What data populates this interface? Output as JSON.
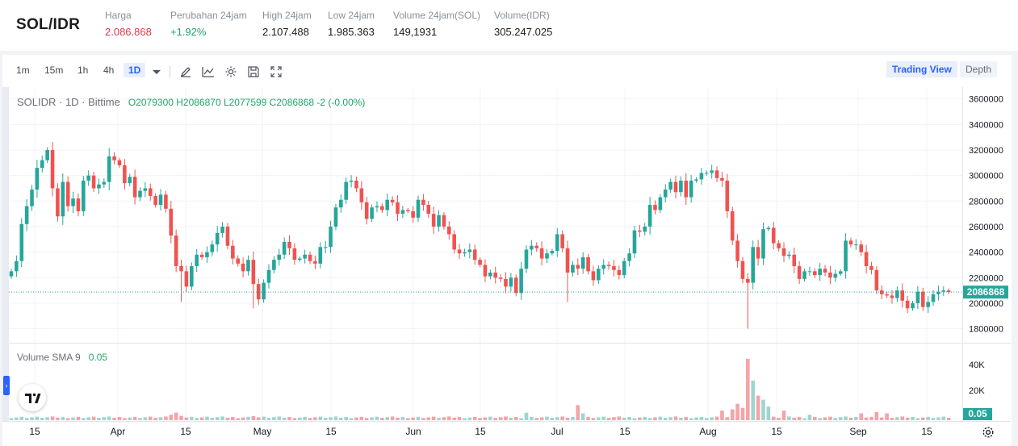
{
  "ticker": {
    "pair": "SOL/IDR",
    "stats": [
      {
        "label": "Harga",
        "value": "2.086.868",
        "tone": "red"
      },
      {
        "label": "Perubahan 24jam",
        "value": "+1.92%",
        "tone": "green"
      },
      {
        "label": "High 24jam",
        "value": "2.107.488",
        "tone": "normal"
      },
      {
        "label": "Low 24jam",
        "value": "1.985.363",
        "tone": "normal"
      },
      {
        "label": "Volume 24jam(SOL)",
        "value": "149,1931",
        "tone": "normal"
      },
      {
        "label": "Volume(IDR)",
        "value": "305.247.025",
        "tone": "normal"
      }
    ]
  },
  "toolbar": {
    "intervals": [
      "1m",
      "15m",
      "1h",
      "4h",
      "1D"
    ],
    "selected_interval": "1D",
    "icons": [
      "chevron-down-icon",
      "draw-icon",
      "indicator-icon",
      "settings-icon",
      "save-icon",
      "fullscreen-icon"
    ],
    "view_active": "Trading View",
    "view_other": "Depth"
  },
  "legend": {
    "symbol": "SOLIDR · 1D · Bittime",
    "ohlc": "O2079300  H2086870  L2077599  C2086868  -2 (-0.00%)",
    "volume_label": "Volume SMA 9",
    "volume_value": "0.05"
  },
  "colors": {
    "up": "#26a69a",
    "down": "#ef5350",
    "up_vol": "#9ed6cf",
    "down_vol": "#f5a3a7",
    "accent": "#2962ff"
  },
  "chart_data": {
    "type": "candlestick",
    "x_tick_labels": [
      "15",
      "Apr",
      "15",
      "May",
      "15",
      "Jun",
      "15",
      "Jul",
      "15",
      "Aug",
      "15",
      "Sep",
      "15"
    ],
    "price_axis_ticks": [
      1800000,
      2000000,
      2200000,
      2400000,
      2600000,
      2800000,
      3000000,
      3200000,
      3400000,
      3600000
    ],
    "price_range": [
      1690000,
      3680000
    ],
    "last_price": 2086868,
    "last_price_label": "2086868",
    "volume_axis_ticks": [
      "20K",
      "40K"
    ],
    "volume_last_label": "0.05",
    "closes": [
      2250000,
      2330000,
      2620000,
      2760000,
      2890000,
      3060000,
      3120000,
      3200000,
      2900000,
      2680000,
      2950000,
      2760000,
      2820000,
      2720000,
      2960000,
      3000000,
      2900000,
      2930000,
      2950000,
      3150000,
      3120000,
      3080000,
      2940000,
      2990000,
      2830000,
      2880000,
      2900000,
      2840000,
      2770000,
      2850000,
      2740000,
      2530000,
      2290000,
      2250000,
      2130000,
      2290000,
      2380000,
      2360000,
      2400000,
      2460000,
      2550000,
      2600000,
      2450000,
      2350000,
      2310000,
      2250000,
      2340000,
      2150000,
      2030000,
      2160000,
      2260000,
      2340000,
      2380000,
      2480000,
      2430000,
      2340000,
      2350000,
      2380000,
      2330000,
      2310000,
      2440000,
      2440000,
      2600000,
      2750000,
      2810000,
      2950000,
      2960000,
      2900000,
      2790000,
      2660000,
      2750000,
      2760000,
      2730000,
      2810000,
      2790000,
      2700000,
      2730000,
      2720000,
      2670000,
      2810000,
      2770000,
      2700000,
      2600000,
      2690000,
      2600000,
      2540000,
      2420000,
      2390000,
      2400000,
      2420000,
      2340000,
      2300000,
      2210000,
      2240000,
      2200000,
      2190000,
      2130000,
      2200000,
      2080000,
      2270000,
      2420000,
      2450000,
      2430000,
      2350000,
      2390000,
      2410000,
      2540000,
      2430000,
      2240000,
      2300000,
      2270000,
      2360000,
      2250000,
      2180000,
      2270000,
      2300000,
      2290000,
      2260000,
      2220000,
      2330000,
      2390000,
      2570000,
      2560000,
      2600000,
      2770000,
      2730000,
      2830000,
      2890000,
      2950000,
      2870000,
      2960000,
      2830000,
      2960000,
      2970000,
      3020000,
      3020000,
      3040000,
      2980000,
      2960000,
      2720000,
      2490000,
      2330000,
      2190000,
      2160000,
      2440000,
      2350000,
      2580000,
      2590000,
      2470000,
      2430000,
      2370000,
      2380000,
      2290000,
      2190000,
      2250000,
      2250000,
      2220000,
      2270000,
      2240000,
      2200000,
      2230000,
      2250000,
      2490000,
      2460000,
      2460000,
      2400000,
      2290000,
      2260000,
      2100000,
      2070000,
      2060000,
      2040000,
      2100000,
      2020000,
      1960000,
      2000000,
      2090000,
      1970000,
      2010000,
      2070000,
      2090000,
      2100000,
      2087000
    ]
  }
}
